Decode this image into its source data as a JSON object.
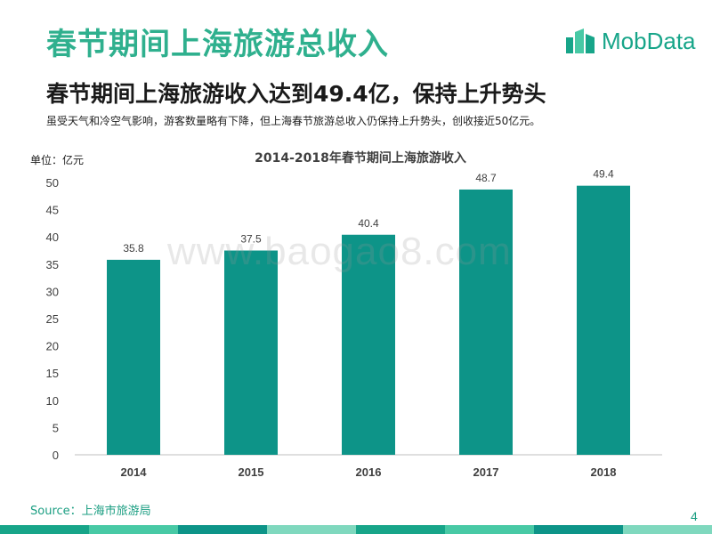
{
  "header": {
    "page_title": "春节期间上海旅游总收入",
    "brand_name": "MobData"
  },
  "headline": "春节期间上海旅游收入达到49.4亿，保持上升势头",
  "subline": "虽受天气和冷空气影响，游客数量略有下降，但上海春节旅游总收入仍保持上升势头，创收接近50亿元。",
  "unit_label": "单位：亿元",
  "watermark": "www.baogao8.com",
  "source": "Source：上海市旅游局",
  "page_number": "4",
  "colors": {
    "bar": "#0d9488",
    "title": "#2fb08e",
    "brand": "#17a589",
    "axis": "#bfbfbf"
  },
  "chart_data": {
    "type": "bar",
    "title": "2014-2018年春节期间上海旅游收入",
    "categories": [
      "2014",
      "2015",
      "2016",
      "2017",
      "2018"
    ],
    "values": [
      35.8,
      37.5,
      40.4,
      48.7,
      49.4
    ],
    "data_labels": [
      "35.8",
      "37.5",
      "40.4",
      "48.7",
      "49.4"
    ],
    "ylim": [
      0,
      50
    ],
    "yticks": [
      0,
      5,
      10,
      15,
      20,
      25,
      30,
      35,
      40,
      45,
      50
    ],
    "xlabel": "",
    "ylabel": "",
    "grid": false,
    "legend": "none"
  }
}
